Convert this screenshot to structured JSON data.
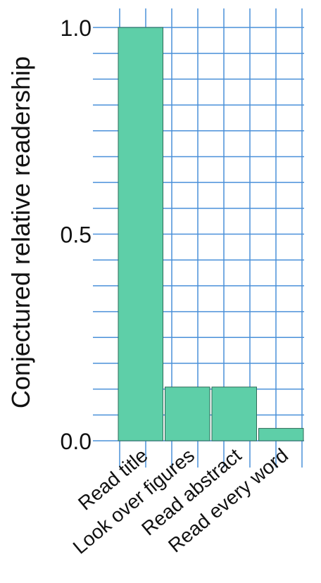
{
  "chart_data": {
    "type": "bar",
    "categories": [
      "Read title",
      "Look over figures",
      "Read abstract",
      "Read every word"
    ],
    "values": [
      1.0,
      0.13,
      0.13,
      0.03
    ],
    "title": "",
    "xlabel": "",
    "ylabel": "Conjectured relative readership",
    "ylim": [
      0,
      1.0
    ],
    "yticks": [
      {
        "value": 0.0,
        "label": "0.0"
      },
      {
        "value": 0.5,
        "label": "0.5"
      },
      {
        "value": 1.0,
        "label": "1.0"
      }
    ],
    "grid": true,
    "colors": {
      "bar": "#5ecfa8",
      "bar_edge": "#2f6b58",
      "grid": "#4a90d9"
    }
  }
}
